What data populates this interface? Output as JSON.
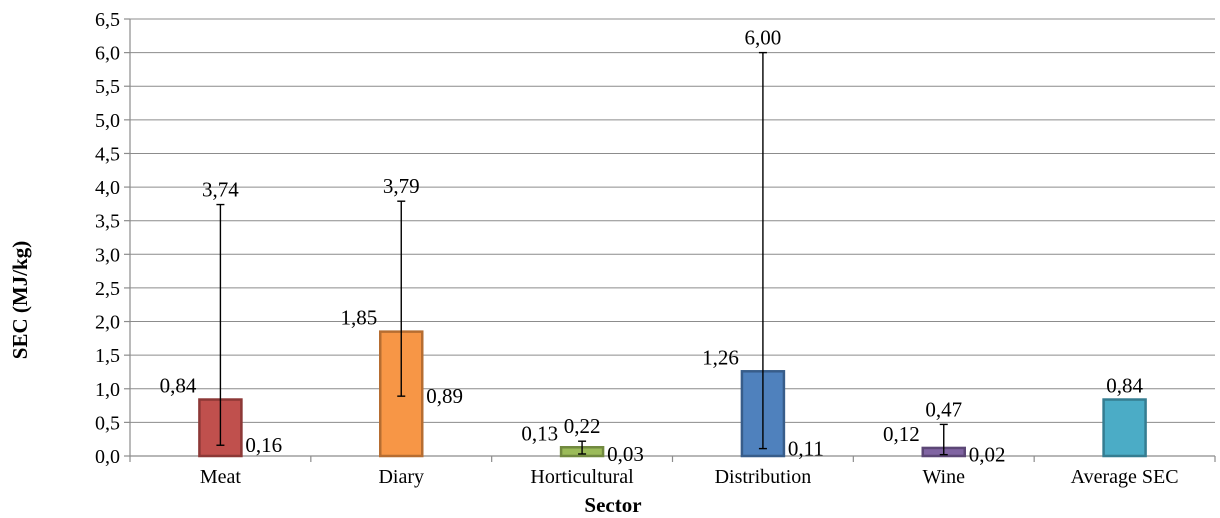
{
  "chart_data": {
    "type": "bar",
    "xlabel": "Sector",
    "ylabel": "SEC (MJ/kg)",
    "ylim": [
      0,
      6.5
    ],
    "ytick_step": 0.5,
    "grid": true,
    "categories": [
      "Meat",
      "Diary",
      "Horticultural",
      "Distribution",
      "Wine",
      "Average SEC"
    ],
    "values": [
      0.84,
      1.85,
      0.13,
      1.26,
      0.12,
      0.84
    ],
    "max": [
      3.74,
      3.79,
      0.22,
      6.0,
      0.47,
      null
    ],
    "min": [
      0.16,
      0.89,
      0.03,
      0.11,
      0.02,
      null
    ],
    "value_labels": [
      "0,84",
      "1,85",
      "0,13",
      "1,26",
      "0,12",
      "0,84"
    ],
    "max_labels": [
      "3,74",
      "3,79",
      "0,22",
      "6,00",
      "0,47",
      null
    ],
    "min_labels": [
      "0,16",
      "0,89",
      "0,03",
      "0,11",
      "0,02",
      null
    ],
    "colors": {
      "fill": [
        "#c0504d",
        "#f79646",
        "#9bbb59",
        "#4f81bd",
        "#8064a2",
        "#4bacc6"
      ],
      "stroke": [
        "#8c3836",
        "#b66d31",
        "#71893f",
        "#385d8a",
        "#5c4776",
        "#357d91"
      ]
    }
  }
}
